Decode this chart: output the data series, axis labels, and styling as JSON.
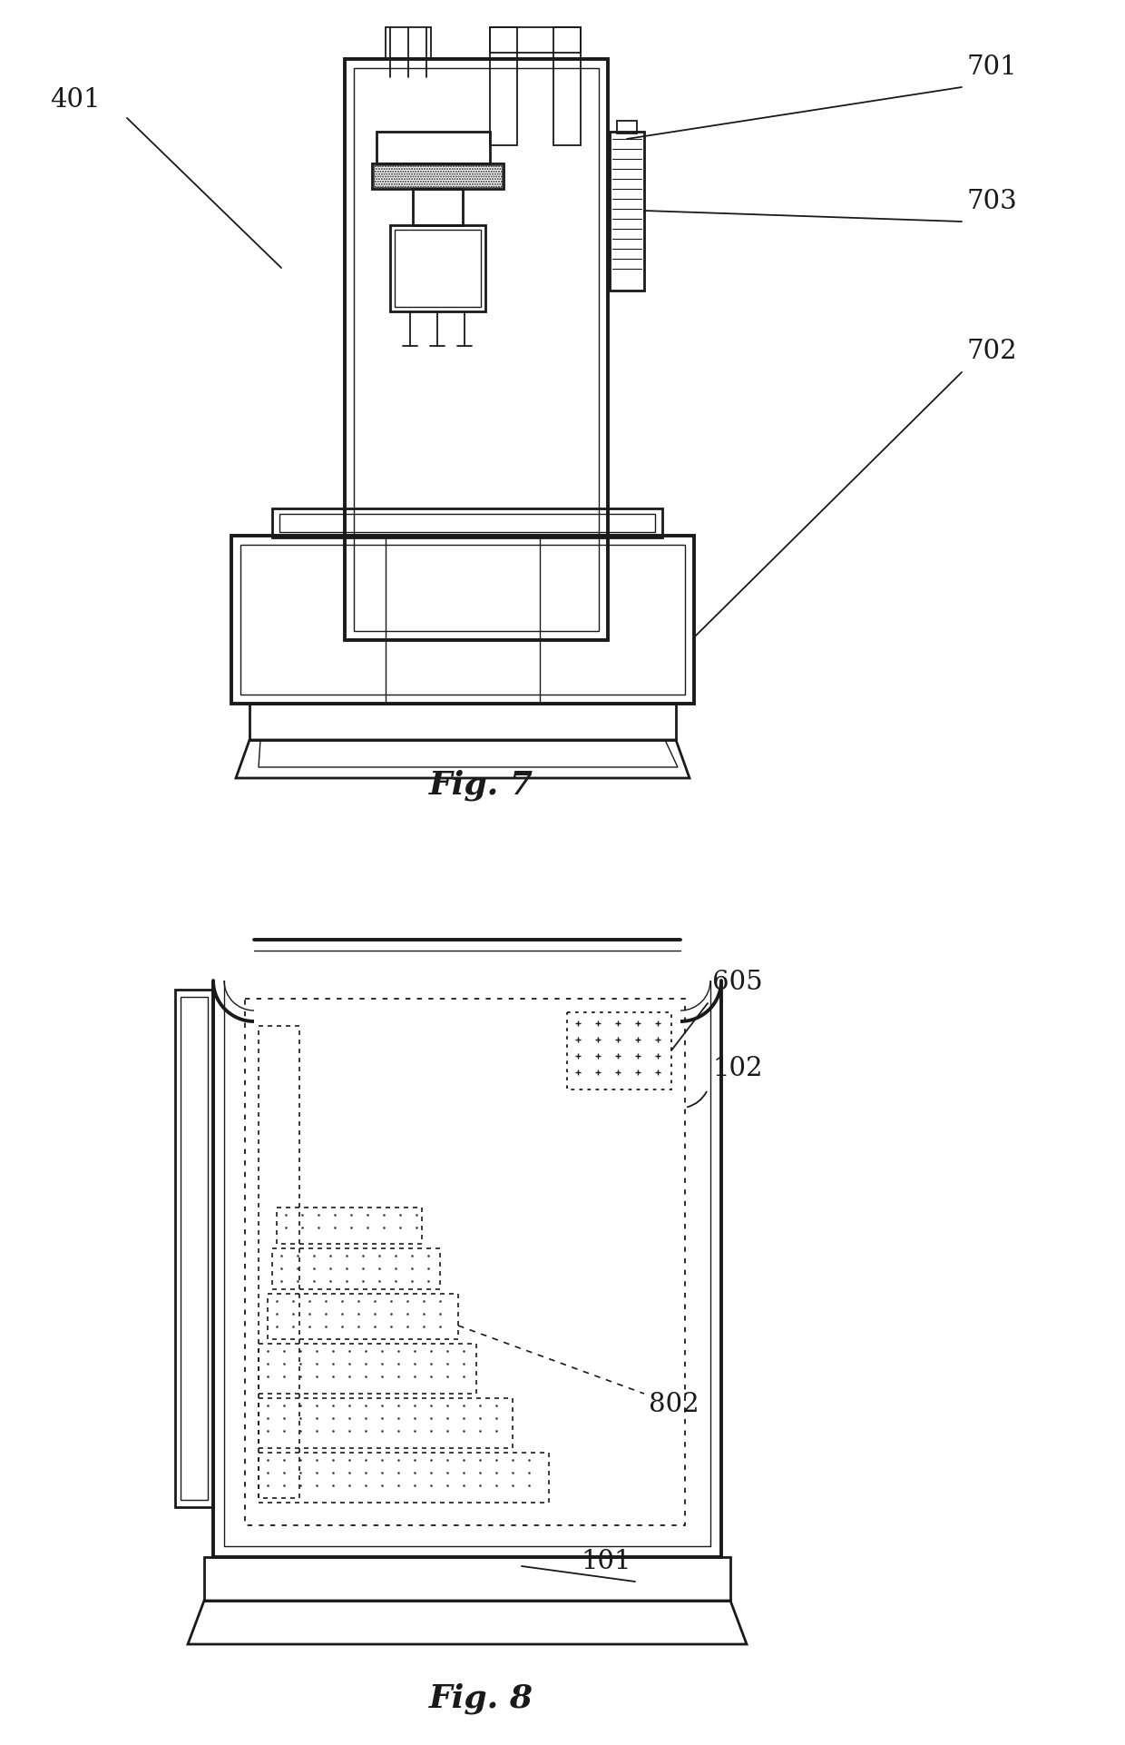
{
  "bg_color": "#ffffff",
  "line_color": "#1a1a1a",
  "fig7_label": "Fig. 7",
  "fig8_label": "Fig. 8",
  "lw_thick": 2.8,
  "lw_main": 2.0,
  "lw_thin": 1.3,
  "lw_inner": 1.0
}
